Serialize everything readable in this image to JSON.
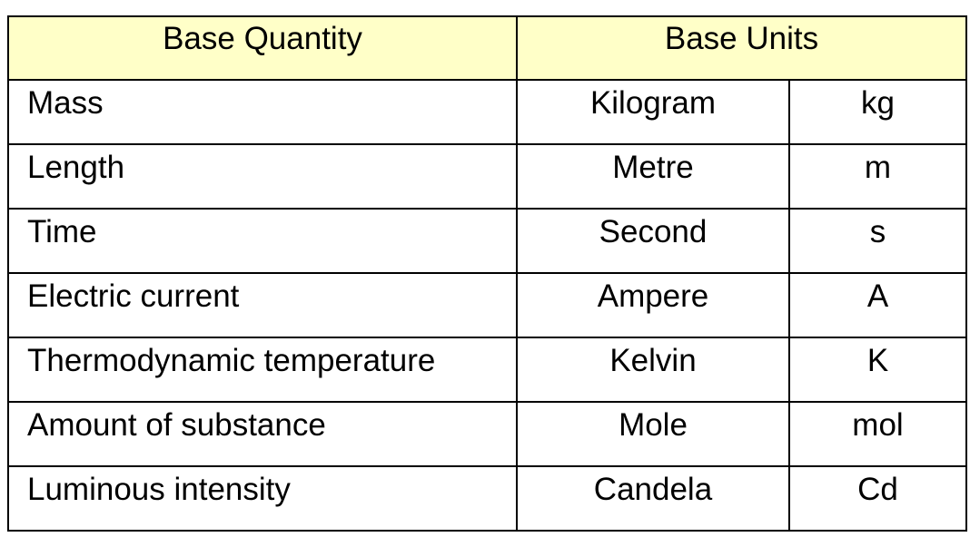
{
  "table": {
    "header": [
      "Base Quantity",
      "Base Units"
    ],
    "rows": [
      [
        "Mass",
        "Kilogram",
        "kg"
      ],
      [
        "Length",
        "Metre",
        "m"
      ],
      [
        "Time",
        "Second",
        "s"
      ],
      [
        "Electric current",
        "Ampere",
        "A"
      ],
      [
        "Thermodynamic temperature",
        "Kelvin",
        "K"
      ],
      [
        "Amount of substance",
        "Mole",
        "mol"
      ],
      [
        "Luminous intensity",
        "Candela",
        "Cd"
      ]
    ]
  }
}
